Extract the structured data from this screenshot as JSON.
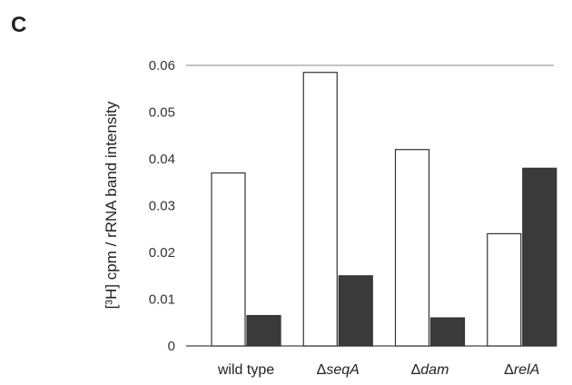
{
  "panel_label": "C",
  "chart_data": {
    "type": "bar",
    "categories": [
      {
        "prefix": "",
        "text": "wild type",
        "italic": false
      },
      {
        "prefix": "Δ",
        "text": "seqA",
        "italic": true
      },
      {
        "prefix": "Δ",
        "text": "dam",
        "italic": true
      },
      {
        "prefix": "Δ",
        "text": "relA",
        "italic": true
      }
    ],
    "series": [
      {
        "values": [
          0.037,
          0.0585,
          0.042,
          0.024
        ],
        "color": "#ffffff"
      },
      {
        "values": [
          0.0065,
          0.015,
          0.006,
          0.038
        ],
        "color": "#3a3a3a"
      }
    ],
    "ylabel": "[³H] cpm / rRNA band intensity",
    "ylim": [
      0,
      0.06
    ],
    "yticks": [
      "0",
      "0.01",
      "0.02",
      "0.03",
      "0.04",
      "0.05",
      "0.06"
    ],
    "grid": false
  }
}
